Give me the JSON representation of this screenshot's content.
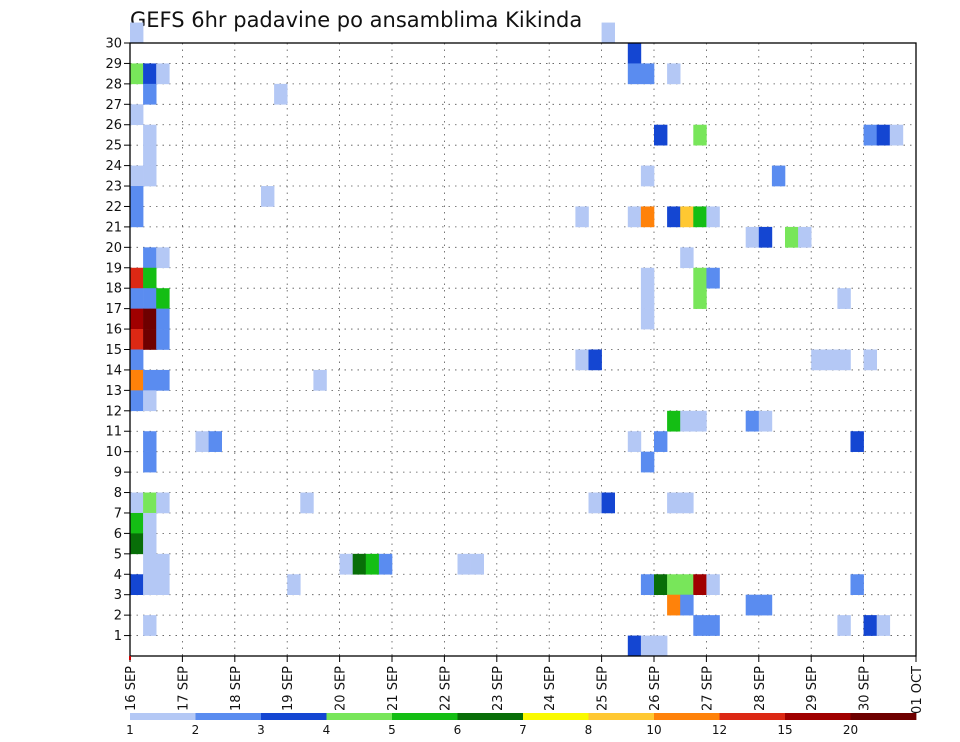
{
  "chart_data": {
    "type": "heatmap",
    "title": "GEFS 6hr padavine po ansamblima Kikinda",
    "xlabel": "",
    "ylabel": "",
    "x_range_days": [
      0,
      15
    ],
    "x_start_label": "16 SEP",
    "steps_per_day": 4,
    "y_range": [
      0,
      30
    ],
    "members": [
      1,
      2,
      3,
      4,
      5,
      6,
      7,
      8,
      9,
      10,
      11,
      12,
      13,
      14,
      15,
      16,
      17,
      18,
      19,
      20,
      21,
      22,
      23,
      24,
      25,
      26,
      27,
      28,
      29,
      30
    ],
    "x_tick_labels": [
      "16 SEP",
      "17 SEP",
      "18 SEP",
      "19 SEP",
      "20 SEP",
      "21 SEP",
      "22 SEP",
      "23 SEP",
      "24 SEP",
      "25 SEP",
      "26 SEP",
      "27 SEP",
      "28 SEP",
      "29 SEP",
      "30 SEP",
      "01 OCT"
    ],
    "y_tick_labels": [
      "1",
      "2",
      "3",
      "4",
      "5",
      "6",
      "7",
      "8",
      "9",
      "10",
      "11",
      "12",
      "13",
      "14",
      "15",
      "16",
      "17",
      "18",
      "19",
      "20",
      "21",
      "22",
      "23",
      "24",
      "25",
      "26",
      "27",
      "28",
      "29",
      "30"
    ],
    "grid": true,
    "legend": {
      "placement": "bottom",
      "levels": [
        "1",
        "2",
        "3",
        "4",
        "5",
        "6",
        "7",
        "8",
        "10",
        "12",
        "15",
        "20"
      ],
      "colors": [
        "#b4c8f5",
        "#5a8cf0",
        "#1446d2",
        "#78e65a",
        "#14be14",
        "#086e08",
        "#fafa00",
        "#ffc832",
        "#ff820a",
        "#dc2814",
        "#a00000",
        "#6e0000"
      ]
    },
    "cells": [
      {
        "m": 30,
        "s": 0,
        "c": 0
      },
      {
        "m": 30,
        "s": 36,
        "c": 0
      },
      {
        "m": 29,
        "s": 38,
        "c": 2
      },
      {
        "m": 28,
        "s": 0,
        "c": 3
      },
      {
        "m": 28,
        "s": 1,
        "c": 2
      },
      {
        "m": 28,
        "s": 2,
        "c": 0
      },
      {
        "m": 28,
        "s": 38,
        "c": 1
      },
      {
        "m": 28,
        "s": 39,
        "c": 1
      },
      {
        "m": 28,
        "s": 41,
        "c": 0
      },
      {
        "m": 27,
        "s": 1,
        "c": 1
      },
      {
        "m": 27,
        "s": 11,
        "c": 0
      },
      {
        "m": 26,
        "s": 0,
        "c": 0
      },
      {
        "m": 25,
        "s": 1,
        "c": 0
      },
      {
        "m": 25,
        "s": 40,
        "c": 2
      },
      {
        "m": 25,
        "s": 43,
        "c": 3
      },
      {
        "m": 25,
        "s": 56,
        "c": 1
      },
      {
        "m": 25,
        "s": 57,
        "c": 2
      },
      {
        "m": 25,
        "s": 58,
        "c": 0
      },
      {
        "m": 24,
        "s": 1,
        "c": 0
      },
      {
        "m": 23,
        "s": 0,
        "c": 0
      },
      {
        "m": 23,
        "s": 1,
        "c": 0
      },
      {
        "m": 23,
        "s": 39,
        "c": 0
      },
      {
        "m": 23,
        "s": 49,
        "c": 1
      },
      {
        "m": 22,
        "s": 0,
        "c": 1
      },
      {
        "m": 22,
        "s": 10,
        "c": 0
      },
      {
        "m": 21,
        "s": 0,
        "c": 1
      },
      {
        "m": 21,
        "s": 34,
        "c": 0
      },
      {
        "m": 21,
        "s": 38,
        "c": 0
      },
      {
        "m": 21,
        "s": 39,
        "c": 8
      },
      {
        "m": 21,
        "s": 41,
        "c": 2
      },
      {
        "m": 21,
        "s": 42,
        "c": 7
      },
      {
        "m": 21,
        "s": 43,
        "c": 4
      },
      {
        "m": 21,
        "s": 44,
        "c": 0
      },
      {
        "m": 20,
        "s": 47,
        "c": 0
      },
      {
        "m": 20,
        "s": 48,
        "c": 2
      },
      {
        "m": 20,
        "s": 50,
        "c": 3
      },
      {
        "m": 20,
        "s": 51,
        "c": 0
      },
      {
        "m": 19,
        "s": 1,
        "c": 1
      },
      {
        "m": 19,
        "s": 2,
        "c": 0
      },
      {
        "m": 19,
        "s": 42,
        "c": 0
      },
      {
        "m": 18,
        "s": 0,
        "c": 9
      },
      {
        "m": 18,
        "s": 1,
        "c": 4
      },
      {
        "m": 18,
        "s": 39,
        "c": 0
      },
      {
        "m": 18,
        "s": 43,
        "c": 3
      },
      {
        "m": 18,
        "s": 44,
        "c": 1
      },
      {
        "m": 17,
        "s": 0,
        "c": 1
      },
      {
        "m": 17,
        "s": 1,
        "c": 1
      },
      {
        "m": 17,
        "s": 2,
        "c": 4
      },
      {
        "m": 17,
        "s": 39,
        "c": 0
      },
      {
        "m": 17,
        "s": 43,
        "c": 3
      },
      {
        "m": 17,
        "s": 54,
        "c": 0
      },
      {
        "m": 16,
        "s": 0,
        "c": 10
      },
      {
        "m": 16,
        "s": 1,
        "c": 11
      },
      {
        "m": 16,
        "s": 2,
        "c": 1
      },
      {
        "m": 16,
        "s": 39,
        "c": 0
      },
      {
        "m": 15,
        "s": 0,
        "c": 9
      },
      {
        "m": 15,
        "s": 1,
        "c": 11
      },
      {
        "m": 15,
        "s": 2,
        "c": 1
      },
      {
        "m": 14,
        "s": 0,
        "c": 1
      },
      {
        "m": 14,
        "s": 34,
        "c": 0
      },
      {
        "m": 14,
        "s": 35,
        "c": 2
      },
      {
        "m": 14,
        "s": 52,
        "c": 0
      },
      {
        "m": 14,
        "s": 53,
        "c": 0
      },
      {
        "m": 14,
        "s": 54,
        "c": 0
      },
      {
        "m": 14,
        "s": 56,
        "c": 0
      },
      {
        "m": 13,
        "s": 0,
        "c": 8
      },
      {
        "m": 13,
        "s": 1,
        "c": 1
      },
      {
        "m": 13,
        "s": 2,
        "c": 1
      },
      {
        "m": 13,
        "s": 14,
        "c": 0
      },
      {
        "m": 12,
        "s": 0,
        "c": 1
      },
      {
        "m": 12,
        "s": 1,
        "c": 0
      },
      {
        "m": 11,
        "s": 41,
        "c": 4
      },
      {
        "m": 11,
        "s": 42,
        "c": 0
      },
      {
        "m": 11,
        "s": 43,
        "c": 0
      },
      {
        "m": 11,
        "s": 47,
        "c": 1
      },
      {
        "m": 11,
        "s": 48,
        "c": 0
      },
      {
        "m": 10,
        "s": 1,
        "c": 1
      },
      {
        "m": 10,
        "s": 5,
        "c": 0
      },
      {
        "m": 10,
        "s": 6,
        "c": 1
      },
      {
        "m": 10,
        "s": 38,
        "c": 0
      },
      {
        "m": 10,
        "s": 40,
        "c": 1
      },
      {
        "m": 10,
        "s": 55,
        "c": 2
      },
      {
        "m": 9,
        "s": 1,
        "c": 1
      },
      {
        "m": 9,
        "s": 39,
        "c": 1
      },
      {
        "m": 7,
        "s": 0,
        "c": 0
      },
      {
        "m": 7,
        "s": 1,
        "c": 3
      },
      {
        "m": 7,
        "s": 2,
        "c": 0
      },
      {
        "m": 7,
        "s": 13,
        "c": 0
      },
      {
        "m": 7,
        "s": 35,
        "c": 0
      },
      {
        "m": 7,
        "s": 36,
        "c": 2
      },
      {
        "m": 7,
        "s": 41,
        "c": 0
      },
      {
        "m": 7,
        "s": 42,
        "c": 0
      },
      {
        "m": 6,
        "s": 0,
        "c": 4
      },
      {
        "m": 6,
        "s": 1,
        "c": 0
      },
      {
        "m": 5,
        "s": 0,
        "c": 5
      },
      {
        "m": 5,
        "s": 1,
        "c": 0
      },
      {
        "m": 4,
        "s": 1,
        "c": 0
      },
      {
        "m": 4,
        "s": 2,
        "c": 0
      },
      {
        "m": 4,
        "s": 16,
        "c": 0
      },
      {
        "m": 4,
        "s": 17,
        "c": 5
      },
      {
        "m": 4,
        "s": 18,
        "c": 4
      },
      {
        "m": 4,
        "s": 19,
        "c": 1
      },
      {
        "m": 4,
        "s": 25,
        "c": 0
      },
      {
        "m": 4,
        "s": 26,
        "c": 0
      },
      {
        "m": 3,
        "s": 0,
        "c": 2
      },
      {
        "m": 3,
        "s": 1,
        "c": 0
      },
      {
        "m": 3,
        "s": 2,
        "c": 0
      },
      {
        "m": 3,
        "s": 12,
        "c": 0
      },
      {
        "m": 3,
        "s": 39,
        "c": 1
      },
      {
        "m": 3,
        "s": 40,
        "c": 5
      },
      {
        "m": 3,
        "s": 41,
        "c": 3
      },
      {
        "m": 3,
        "s": 42,
        "c": 3
      },
      {
        "m": 3,
        "s": 43,
        "c": 10
      },
      {
        "m": 3,
        "s": 44,
        "c": 0
      },
      {
        "m": 3,
        "s": 55,
        "c": 1
      },
      {
        "m": 2,
        "s": 41,
        "c": 8
      },
      {
        "m": 2,
        "s": 42,
        "c": 1
      },
      {
        "m": 2,
        "s": 47,
        "c": 1
      },
      {
        "m": 2,
        "s": 48,
        "c": 1
      },
      {
        "m": 1,
        "s": 1,
        "c": 0
      },
      {
        "m": 1,
        "s": 43,
        "c": 1
      },
      {
        "m": 1,
        "s": 44,
        "c": 1
      },
      {
        "m": 1,
        "s": 54,
        "c": 0
      },
      {
        "m": 1,
        "s": 56,
        "c": 2
      },
      {
        "m": 1,
        "s": 57,
        "c": 0
      },
      {
        "m": 0,
        "s": 38,
        "c": 2
      },
      {
        "m": 0,
        "s": 39,
        "c": 0
      },
      {
        "m": 0,
        "s": 40,
        "c": 0
      }
    ]
  }
}
